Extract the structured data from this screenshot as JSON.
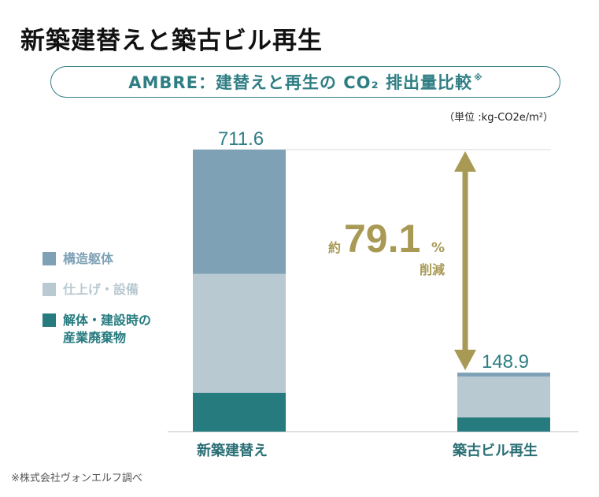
{
  "title": "新築建替えと築古ビル再生",
  "subtitle": {
    "text": "AMBRE：建替えと再生の CO₂ 排出量比較",
    "mark": "※"
  },
  "unit": "（単位 :kg-CO2e/m²）",
  "note": "※株式会社ヴォンエルフ調べ",
  "chart_data": {
    "type": "bar",
    "stacked": true,
    "categories": [
      "新築建替え",
      "築古ビル再生"
    ],
    "totals": [
      "711.6",
      "148.9"
    ],
    "series": [
      {
        "name": "解体・建設時の産業廃棄物",
        "color": "#267b7f",
        "values": [
          98,
          36
        ]
      },
      {
        "name": "仕上げ・設備",
        "color": "#b9c9d1",
        "values": [
          300,
          103
        ]
      },
      {
        "name": "構造躯体",
        "color": "#7ea1b5",
        "values": [
          313.6,
          9.9
        ]
      }
    ],
    "ylim": [
      0,
      711.6
    ],
    "annotation": {
      "prefix": "約",
      "value": "79.1",
      "unit": "%",
      "text": "削減",
      "color": "#a89a55"
    }
  },
  "legend": [
    {
      "label": "構造躯体",
      "color": "#7ea1b5",
      "text_color": "#7ea1b5"
    },
    {
      "label": "仕上げ・設備",
      "color": "#b9c9d1",
      "text_color": "#b9c9d1"
    },
    {
      "label": "解体・建設時の\n産業廃棄物",
      "color": "#267b7f",
      "text_color": "#267b7f"
    }
  ]
}
